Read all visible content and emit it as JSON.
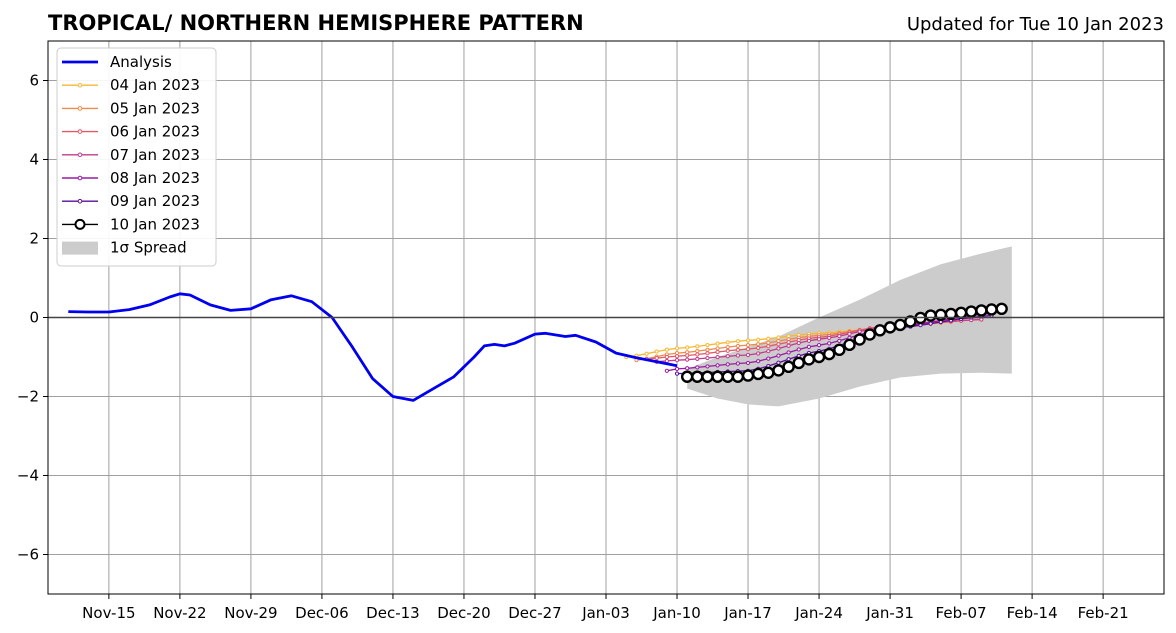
{
  "chart_data": {
    "type": "line",
    "title": "TROPICAL/ NORTHERN HEMISPHERE PATTERN",
    "subtitle": "Updated for Tue 10 Jan 2023",
    "xlabel": "",
    "ylabel": "",
    "x_range": [
      "2022-11-09",
      "2023-02-27"
    ],
    "ylim": [
      -7,
      7
    ],
    "y_ticks": [
      -6,
      -4,
      -2,
      0,
      2,
      4,
      6
    ],
    "y_tick_labels": [
      "−6",
      "−4",
      "−2",
      "0",
      "2",
      "4",
      "6"
    ],
    "x_ticks": [
      {
        "date": "2022-11-15",
        "label": "Nov-15"
      },
      {
        "date": "2022-11-22",
        "label": "Nov-22"
      },
      {
        "date": "2022-11-29",
        "label": "Nov-29"
      },
      {
        "date": "2022-12-06",
        "label": "Dec-06"
      },
      {
        "date": "2022-12-13",
        "label": "Dec-13"
      },
      {
        "date": "2022-12-20",
        "label": "Dec-20"
      },
      {
        "date": "2022-12-27",
        "label": "Dec-27"
      },
      {
        "date": "2023-01-03",
        "label": "Jan-03"
      },
      {
        "date": "2023-01-10",
        "label": "Jan-10"
      },
      {
        "date": "2023-01-17",
        "label": "Jan-17"
      },
      {
        "date": "2023-01-24",
        "label": "Jan-24"
      },
      {
        "date": "2023-01-31",
        "label": "Jan-31"
      },
      {
        "date": "2023-02-07",
        "label": "Feb-07"
      },
      {
        "date": "2023-02-14",
        "label": "Feb-14"
      },
      {
        "date": "2023-02-21",
        "label": "Feb-21"
      }
    ],
    "grid": true,
    "legend_position": "top-left",
    "analysis": {
      "name": "Analysis",
      "color": "#0000ee",
      "points": [
        [
          "2022-11-11",
          0.15
        ],
        [
          "2022-11-13",
          0.14
        ],
        [
          "2022-11-15",
          0.14
        ],
        [
          "2022-11-17",
          0.2
        ],
        [
          "2022-11-19",
          0.32
        ],
        [
          "2022-11-21",
          0.52
        ],
        [
          "2022-11-22",
          0.6
        ],
        [
          "2022-11-23",
          0.57
        ],
        [
          "2022-11-25",
          0.32
        ],
        [
          "2022-11-27",
          0.18
        ],
        [
          "2022-11-29",
          0.22
        ],
        [
          "2022-12-01",
          0.45
        ],
        [
          "2022-12-03",
          0.55
        ],
        [
          "2022-12-05",
          0.4
        ],
        [
          "2022-12-07",
          0.0
        ],
        [
          "2022-12-09",
          -0.75
        ],
        [
          "2022-12-11",
          -1.55
        ],
        [
          "2022-12-13",
          -2.0
        ],
        [
          "2022-12-15",
          -2.1
        ],
        [
          "2022-12-17",
          -1.8
        ],
        [
          "2022-12-19",
          -1.5
        ],
        [
          "2022-12-21",
          -1.0
        ],
        [
          "2022-12-22",
          -0.72
        ],
        [
          "2022-12-23",
          -0.68
        ],
        [
          "2022-12-24",
          -0.72
        ],
        [
          "2022-12-25",
          -0.65
        ],
        [
          "2022-12-27",
          -0.42
        ],
        [
          "2022-12-28",
          -0.4
        ],
        [
          "2022-12-30",
          -0.48
        ],
        [
          "2022-12-31",
          -0.45
        ],
        [
          "2023-01-02",
          -0.62
        ],
        [
          "2023-01-04",
          -0.9
        ],
        [
          "2023-01-06",
          -1.02
        ],
        [
          "2023-01-08",
          -1.12
        ],
        [
          "2023-01-10",
          -1.22
        ]
      ]
    },
    "spread": {
      "name": "1σ Spread",
      "color": "#cccccc",
      "upper": [
        [
          "2023-01-11",
          -1.3
        ],
        [
          "2023-01-14",
          -1.0
        ],
        [
          "2023-01-17",
          -0.75
        ],
        [
          "2023-01-20",
          -0.48
        ],
        [
          "2023-01-24",
          0.0
        ],
        [
          "2023-01-28",
          0.45
        ],
        [
          "2023-02-01",
          0.95
        ],
        [
          "2023-02-05",
          1.35
        ],
        [
          "2023-02-09",
          1.62
        ],
        [
          "2023-02-12",
          1.8
        ]
      ],
      "lower": [
        [
          "2023-01-11",
          -1.8
        ],
        [
          "2023-01-14",
          -2.05
        ],
        [
          "2023-01-17",
          -2.2
        ],
        [
          "2023-01-20",
          -2.25
        ],
        [
          "2023-01-24",
          -2.05
        ],
        [
          "2023-01-28",
          -1.75
        ],
        [
          "2023-02-01",
          -1.52
        ],
        [
          "2023-02-05",
          -1.42
        ],
        [
          "2023-02-09",
          -1.4
        ],
        [
          "2023-02-12",
          -1.42
        ]
      ]
    },
    "series": [
      {
        "name": "04 Jan 2023",
        "color": "#f5b833",
        "start": "2023-01-05",
        "end": "2023-02-09",
        "knots": [
          [
            "2023-01-05",
            -1.0
          ],
          [
            "2023-01-10",
            -0.78
          ],
          [
            "2023-01-17",
            -0.58
          ],
          [
            "2023-01-24",
            -0.4
          ],
          [
            "2023-01-31",
            -0.25
          ],
          [
            "2023-02-09",
            -0.05
          ]
        ]
      },
      {
        "name": "05 Jan 2023",
        "color": "#f08a4b",
        "start": "2023-01-06",
        "end": "2023-02-09",
        "knots": [
          [
            "2023-01-06",
            -1.08
          ],
          [
            "2023-01-10",
            -0.9
          ],
          [
            "2023-01-17",
            -0.7
          ],
          [
            "2023-01-24",
            -0.45
          ],
          [
            "2023-01-31",
            -0.22
          ],
          [
            "2023-02-09",
            -0.05
          ]
        ]
      },
      {
        "name": "06 Jan 2023",
        "color": "#e05a6a",
        "start": "2023-01-07",
        "end": "2023-02-09",
        "knots": [
          [
            "2023-01-07",
            -1.05
          ],
          [
            "2023-01-10",
            -0.98
          ],
          [
            "2023-01-17",
            -0.8
          ],
          [
            "2023-01-24",
            -0.5
          ],
          [
            "2023-01-31",
            -0.2
          ],
          [
            "2023-02-09",
            0.0
          ]
        ]
      },
      {
        "name": "07 Jan 2023",
        "color": "#c23b8c",
        "start": "2023-01-08",
        "end": "2023-02-09",
        "knots": [
          [
            "2023-01-08",
            -1.12
          ],
          [
            "2023-01-10",
            -1.08
          ],
          [
            "2023-01-17",
            -0.95
          ],
          [
            "2023-01-24",
            -0.55
          ],
          [
            "2023-01-31",
            -0.22
          ],
          [
            "2023-02-09",
            -0.05
          ]
        ]
      },
      {
        "name": "08 Jan 2023",
        "color": "#9a1aa5",
        "start": "2023-01-09",
        "end": "2023-02-10",
        "knots": [
          [
            "2023-01-09",
            -1.35
          ],
          [
            "2023-01-10",
            -1.3
          ],
          [
            "2023-01-17",
            -1.15
          ],
          [
            "2023-01-24",
            -0.7
          ],
          [
            "2023-01-31",
            -0.25
          ],
          [
            "2023-02-10",
            0.1
          ]
        ]
      },
      {
        "name": "09 Jan 2023",
        "color": "#5a0f9c",
        "start": "2023-01-10",
        "end": "2023-02-10",
        "knots": [
          [
            "2023-01-10",
            -1.42
          ],
          [
            "2023-01-17",
            -1.35
          ],
          [
            "2023-01-24",
            -0.85
          ],
          [
            "2023-01-31",
            -0.28
          ],
          [
            "2023-02-10",
            0.05
          ]
        ]
      },
      {
        "name": "10 Jan 2023",
        "color": "#000000",
        "start": "2023-01-11",
        "end": "2023-02-11",
        "knots": [
          [
            "2023-01-11",
            -1.5
          ],
          [
            "2023-01-16",
            -1.5
          ],
          [
            "2023-01-19",
            -1.4
          ],
          [
            "2023-01-24",
            -1.0
          ],
          [
            "2023-01-31",
            -0.25
          ],
          [
            "2023-02-04",
            0.05
          ],
          [
            "2023-02-11",
            0.22
          ]
        ]
      }
    ]
  }
}
